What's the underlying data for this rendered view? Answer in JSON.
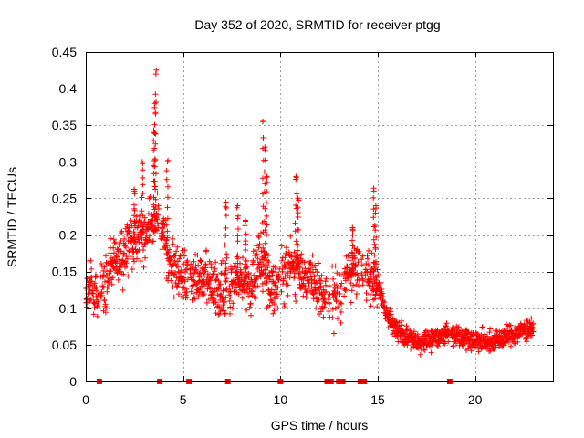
{
  "chart_data": {
    "type": "scatter",
    "title": "Day 352 of 2020, SRMTID for receiver ptgg",
    "xlabel": "GPS time / hours",
    "ylabel": "SRMTID / TECUs",
    "xlim": [
      0,
      24
    ],
    "ylim": [
      0,
      0.45
    ],
    "x_ticks": [
      0,
      5,
      10,
      15,
      20
    ],
    "x_tick_labels": [
      "0",
      "5",
      "10",
      "15",
      "20"
    ],
    "y_ticks": [
      0,
      0.05,
      0.1,
      0.15,
      0.2,
      0.25,
      0.3,
      0.35,
      0.4,
      0.45
    ],
    "y_tick_labels": [
      "0",
      "0.05",
      "0.1",
      "0.15",
      "0.2",
      "0.25",
      "0.3",
      "0.35",
      "0.4",
      "0.45"
    ],
    "grid": true,
    "marker": "plus",
    "color": "#ff0000",
    "series": [
      {
        "name": "SRMTID",
        "profile": [
          [
            0.0,
            0.11
          ],
          [
            0.25,
            0.13
          ],
          [
            0.5,
            0.12
          ],
          [
            0.75,
            0.14
          ],
          [
            1.0,
            0.13
          ],
          [
            1.25,
            0.16
          ],
          [
            1.5,
            0.17
          ],
          [
            1.75,
            0.16
          ],
          [
            2.0,
            0.18
          ],
          [
            2.25,
            0.19
          ],
          [
            2.5,
            0.19
          ],
          [
            2.75,
            0.2
          ],
          [
            3.0,
            0.19
          ],
          [
            3.25,
            0.21
          ],
          [
            3.5,
            0.23
          ],
          [
            3.75,
            0.21
          ],
          [
            4.0,
            0.2
          ],
          [
            4.25,
            0.17
          ],
          [
            4.5,
            0.15
          ],
          [
            4.75,
            0.15
          ],
          [
            5.0,
            0.15
          ],
          [
            5.5,
            0.14
          ],
          [
            6.0,
            0.14
          ],
          [
            6.5,
            0.13
          ],
          [
            7.0,
            0.12
          ],
          [
            7.5,
            0.13
          ],
          [
            8.0,
            0.14
          ],
          [
            8.5,
            0.13
          ],
          [
            9.0,
            0.17
          ],
          [
            9.25,
            0.15
          ],
          [
            9.5,
            0.13
          ],
          [
            10.0,
            0.14
          ],
          [
            10.5,
            0.16
          ],
          [
            11.0,
            0.15
          ],
          [
            11.5,
            0.14
          ],
          [
            12.0,
            0.12
          ],
          [
            12.5,
            0.11
          ],
          [
            13.0,
            0.12
          ],
          [
            13.5,
            0.15
          ],
          [
            14.0,
            0.15
          ],
          [
            14.5,
            0.15
          ],
          [
            15.0,
            0.13
          ],
          [
            15.5,
            0.09
          ],
          [
            16.0,
            0.07
          ],
          [
            16.5,
            0.06
          ],
          [
            17.0,
            0.055
          ],
          [
            17.5,
            0.055
          ],
          [
            18.0,
            0.06
          ],
          [
            18.5,
            0.065
          ],
          [
            19.0,
            0.065
          ],
          [
            19.5,
            0.06
          ],
          [
            20.0,
            0.055
          ],
          [
            20.5,
            0.055
          ],
          [
            21.0,
            0.055
          ],
          [
            21.5,
            0.06
          ],
          [
            22.0,
            0.065
          ],
          [
            22.5,
            0.07
          ],
          [
            23.0,
            0.075
          ]
        ],
        "spikes": [
          {
            "x": 3.6,
            "y": 0.42
          },
          {
            "x": 3.55,
            "y": 0.38
          },
          {
            "x": 3.5,
            "y": 0.34
          },
          {
            "x": 2.9,
            "y": 0.3
          },
          {
            "x": 4.2,
            "y": 0.3
          },
          {
            "x": 9.1,
            "y": 0.355
          },
          {
            "x": 9.2,
            "y": 0.32
          },
          {
            "x": 9.3,
            "y": 0.28
          },
          {
            "x": 10.8,
            "y": 0.28
          },
          {
            "x": 10.9,
            "y": 0.25
          },
          {
            "x": 14.8,
            "y": 0.26
          },
          {
            "x": 14.9,
            "y": 0.24
          },
          {
            "x": 7.2,
            "y": 0.245
          },
          {
            "x": 7.8,
            "y": 0.24
          },
          {
            "x": 8.2,
            "y": 0.22
          },
          {
            "x": 2.5,
            "y": 0.26
          },
          {
            "x": 13.7,
            "y": 0.21
          }
        ],
        "data_gaps_at_zero": [
          0.7,
          3.8,
          5.3,
          7.3,
          10.0,
          12.4,
          12.6,
          13.0,
          13.2,
          14.1,
          14.3,
          18.7
        ]
      }
    ]
  }
}
